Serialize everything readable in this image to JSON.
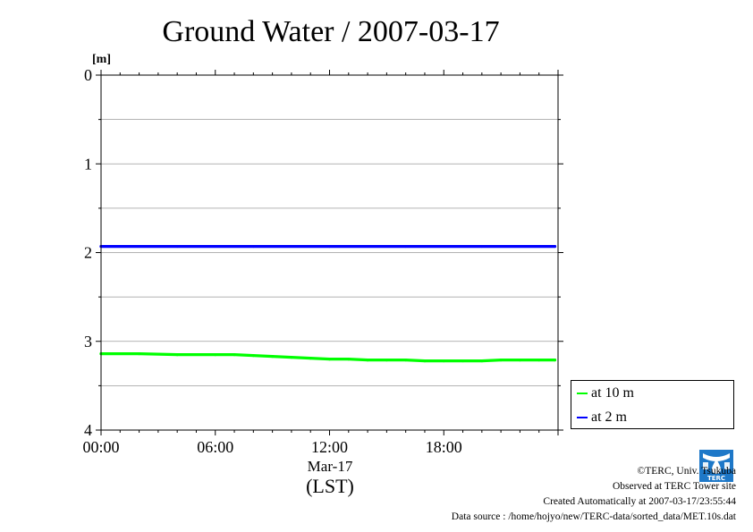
{
  "title": "Ground Water / 2007-03-17",
  "chart_data": {
    "type": "line",
    "title": "Ground Water / 2007-03-17",
    "ylabel": "[m]",
    "xlabel": "(LST)",
    "x_date_label": "Mar-17",
    "ylim": [
      4,
      0
    ],
    "y_inverted": true,
    "y_ticks": [
      "0",
      "1",
      "2",
      "3",
      "4"
    ],
    "x_ticks": [
      "00:00",
      "06:00",
      "12:00",
      "18:00"
    ],
    "x_tick_hours": [
      0,
      6,
      12,
      18
    ],
    "x_range_hours": [
      0,
      24
    ],
    "grid": true,
    "legend_placement": "right-bottom",
    "series": [
      {
        "name": "at 10 m",
        "color": "#00ff00",
        "x": [
          "00:00",
          "02:00",
          "04:00",
          "06:00",
          "07:00",
          "08:00",
          "09:00",
          "10:00",
          "11:00",
          "12:00",
          "13:00",
          "14:00",
          "15:00",
          "16:00",
          "17:00",
          "18:00",
          "19:00",
          "20:00",
          "21:00",
          "22:00",
          "23:00",
          "23:50"
        ],
        "values": [
          3.14,
          3.14,
          3.15,
          3.15,
          3.15,
          3.16,
          3.17,
          3.18,
          3.19,
          3.2,
          3.2,
          3.21,
          3.21,
          3.21,
          3.22,
          3.22,
          3.22,
          3.22,
          3.21,
          3.21,
          3.21,
          3.21
        ]
      },
      {
        "name": "at 2 m",
        "color": "#0000ff",
        "x": [
          "00:00",
          "04:00",
          "08:00",
          "12:00",
          "16:00",
          "20:00",
          "23:50"
        ],
        "values": [
          1.93,
          1.93,
          1.93,
          1.93,
          1.93,
          1.93,
          1.93
        ]
      }
    ]
  },
  "footer": {
    "copyright": "©TERC, Univ. Tsukuba",
    "observed": "Observed at TERC Tower site",
    "created": "Created Automatically at 2007-03-17/23:55:44",
    "source": "Data source : /home/hojyo/new/TERC-data/sorted_data/MET.10s.dat"
  },
  "logo": {
    "text": "TERC",
    "color": "#1e78c8"
  }
}
